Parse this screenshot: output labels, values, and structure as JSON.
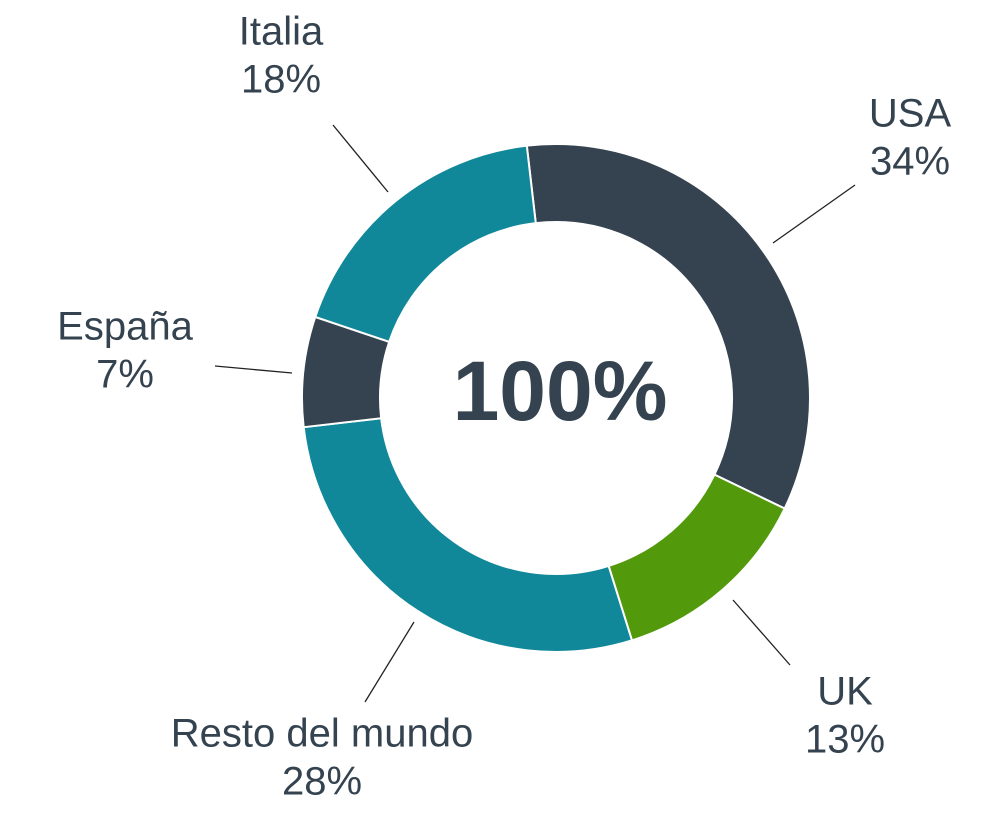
{
  "chart_data": {
    "type": "donut",
    "center_label": "100%",
    "categories": [
      "USA",
      "UK",
      "Resto del mundo",
      "España",
      "Italia"
    ],
    "values": [
      34,
      13,
      28,
      7,
      18
    ],
    "value_labels": [
      "34%",
      "13%",
      "28%",
      "7%",
      "18%"
    ],
    "colors": [
      "#34434f",
      "#52990c",
      "#11889a",
      "#34434f",
      "#11889a"
    ]
  }
}
